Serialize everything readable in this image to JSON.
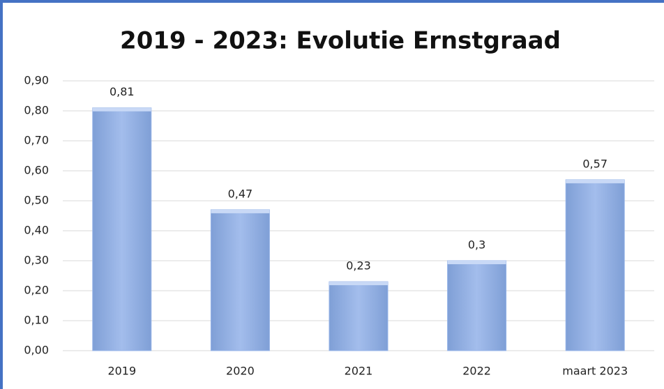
{
  "chart_data": {
    "type": "bar",
    "title": "2019 - 2023: Evolutie Ernstgraad",
    "categories": [
      "2019",
      "2020",
      "2021",
      "2022",
      "maart 2023"
    ],
    "values": [
      0.81,
      0.47,
      0.23,
      0.3,
      0.57
    ],
    "value_labels": [
      "0,81",
      "0,47",
      "0,23",
      "0,3",
      "0,57"
    ],
    "color": "#95b3e8",
    "ylim": [
      0,
      0.9
    ],
    "yticks": [
      {
        "value": 0,
        "label": "0,00"
      },
      {
        "value": 0.1,
        "label": "0,10"
      },
      {
        "value": 0.2,
        "label": "0,20"
      },
      {
        "value": 0.3,
        "label": "0,30"
      },
      {
        "value": 0.4,
        "label": "0,40"
      },
      {
        "value": 0.5,
        "label": "0,50"
      },
      {
        "value": 0.6,
        "label": "0,60"
      },
      {
        "value": 0.7,
        "label": "0,70"
      },
      {
        "value": 0.8,
        "label": "0,80"
      },
      {
        "value": 0.9,
        "label": "0,90"
      }
    ],
    "grid": true
  }
}
